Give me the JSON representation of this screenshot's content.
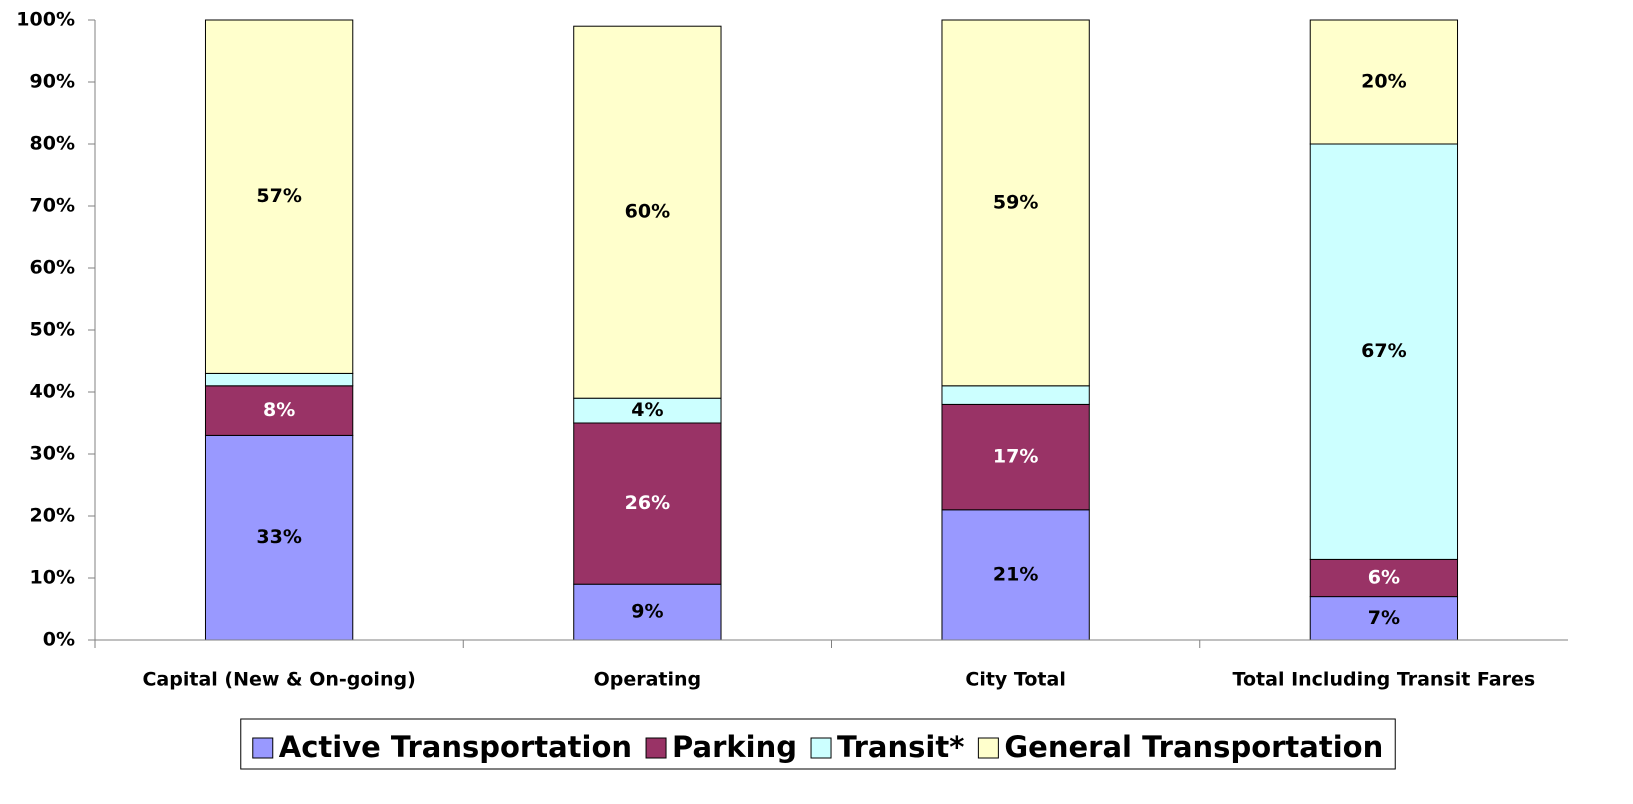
{
  "chart_data": {
    "type": "stacked_bar",
    "categories": [
      "Capital (New & On-going)",
      "Operating",
      "City Total",
      "Total Including Transit Fares"
    ],
    "series": [
      {
        "name": "Active Transportation",
        "color": "#9999ff",
        "label_color": "#000000",
        "values": [
          33,
          9,
          21,
          7
        ],
        "value_labels": [
          "33%",
          "9%",
          "21%",
          "7%"
        ]
      },
      {
        "name": "Parking",
        "color": "#993366",
        "label_color": "#ffffff",
        "values": [
          8,
          26,
          17,
          6
        ],
        "value_labels": [
          "8%",
          "26%",
          "17%",
          "6%"
        ]
      },
      {
        "name": "Transit*",
        "color": "#ccffff",
        "label_color": "#000000",
        "values": [
          2,
          4,
          3,
          67
        ],
        "value_labels": [
          "2%",
          "4%",
          "3%",
          "67%"
        ]
      },
      {
        "name": "General Transportation",
        "color": "#ffffcc",
        "label_color": "#000000",
        "values": [
          57,
          60,
          59,
          20
        ],
        "value_labels": [
          "57%",
          "60%",
          "59%",
          "20%"
        ]
      }
    ],
    "ylim": [
      0,
      100
    ],
    "yticks": [
      {
        "value": 0,
        "label": "0%"
      },
      {
        "value": 10,
        "label": "10%"
      },
      {
        "value": 20,
        "label": "20%"
      },
      {
        "value": 30,
        "label": "30%"
      },
      {
        "value": 40,
        "label": "40%"
      },
      {
        "value": 50,
        "label": "50%"
      },
      {
        "value": 60,
        "label": "60%"
      },
      {
        "value": 70,
        "label": "70%"
      },
      {
        "value": 80,
        "label": "80%"
      },
      {
        "value": 90,
        "label": "90%"
      },
      {
        "value": 100,
        "label": "100%"
      }
    ],
    "grid": false,
    "legend": "bottom"
  }
}
